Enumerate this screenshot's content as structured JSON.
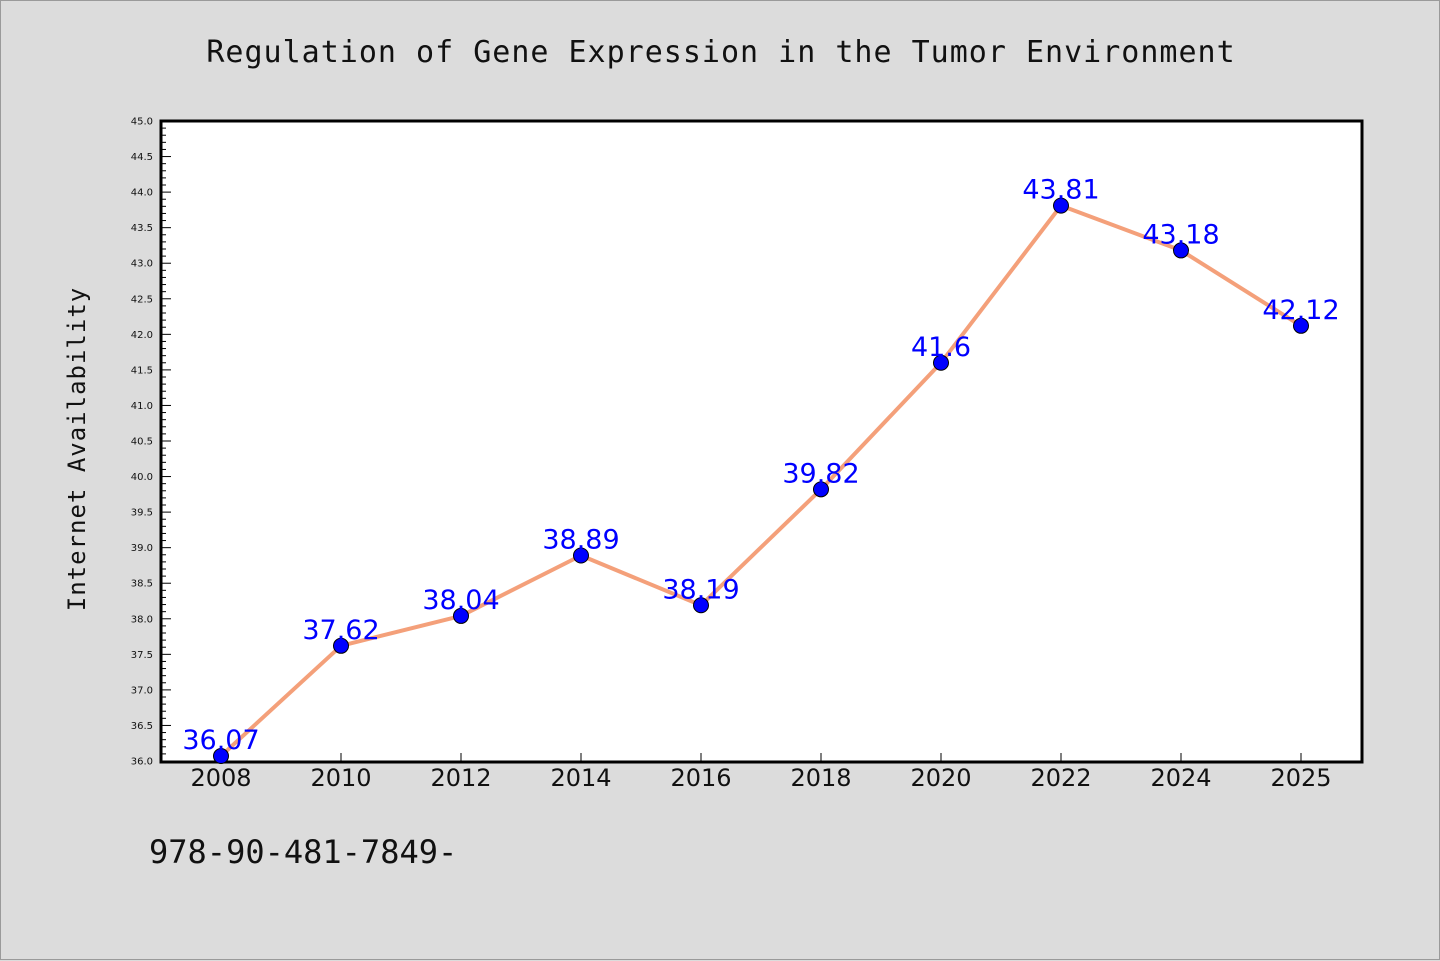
{
  "chart_data": {
    "type": "line",
    "title": "Regulation of Gene Expression in the Tumor Environment",
    "xlabel": "",
    "ylabel": "Internet Availability",
    "categories": [
      "2008",
      "2010",
      "2012",
      "2014",
      "2016",
      "2018",
      "2020",
      "2022",
      "2024",
      "2025"
    ],
    "series": [
      {
        "values": [
          36.07,
          37.62,
          38.04,
          38.89,
          38.19,
          39.82,
          41.6,
          43.81,
          43.18,
          42.12
        ],
        "labels": [
          "36.07",
          "37.62",
          "38.04",
          "38.89",
          "38.19",
          "39.82",
          "41.6",
          "43.81",
          "43.18",
          "42.12"
        ]
      }
    ],
    "ylim": [
      36.0,
      45.0
    ],
    "yticks": [
      "36.0",
      "36.5",
      "37.0",
      "37.5",
      "38.0",
      "38.5",
      "39.0",
      "39.5",
      "40.0",
      "40.5",
      "41.0",
      "41.5",
      "42.0",
      "42.5",
      "43.0",
      "43.5",
      "44.0",
      "44.5",
      "45.0"
    ],
    "grid": false,
    "legend": "none"
  },
  "footer_text": "978-90-481-7849-",
  "colors": {
    "background": "#dcdcdc",
    "plot_background": "#ffffff",
    "line": "#f4a07a",
    "marker": "#0000ff",
    "data_label": "#0000ff"
  }
}
